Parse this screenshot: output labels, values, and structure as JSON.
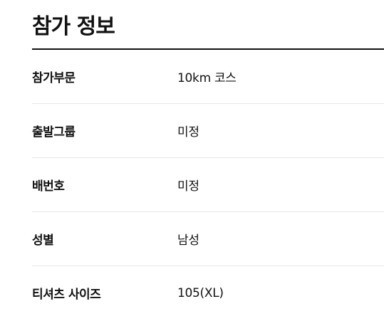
{
  "section": {
    "title": "참가 정보"
  },
  "rows": [
    {
      "label": "참가부문",
      "value": "10km 코스"
    },
    {
      "label": "출발그룹",
      "value": "미정"
    },
    {
      "label": "배번호",
      "value": "미정"
    },
    {
      "label": "성별",
      "value": "남성"
    },
    {
      "label": "티셔츠 사이즈",
      "value": "105(XL)"
    }
  ],
  "colors": {
    "text": "#111111",
    "divider": "#e6e6e6",
    "title_rule": "#111111"
  }
}
